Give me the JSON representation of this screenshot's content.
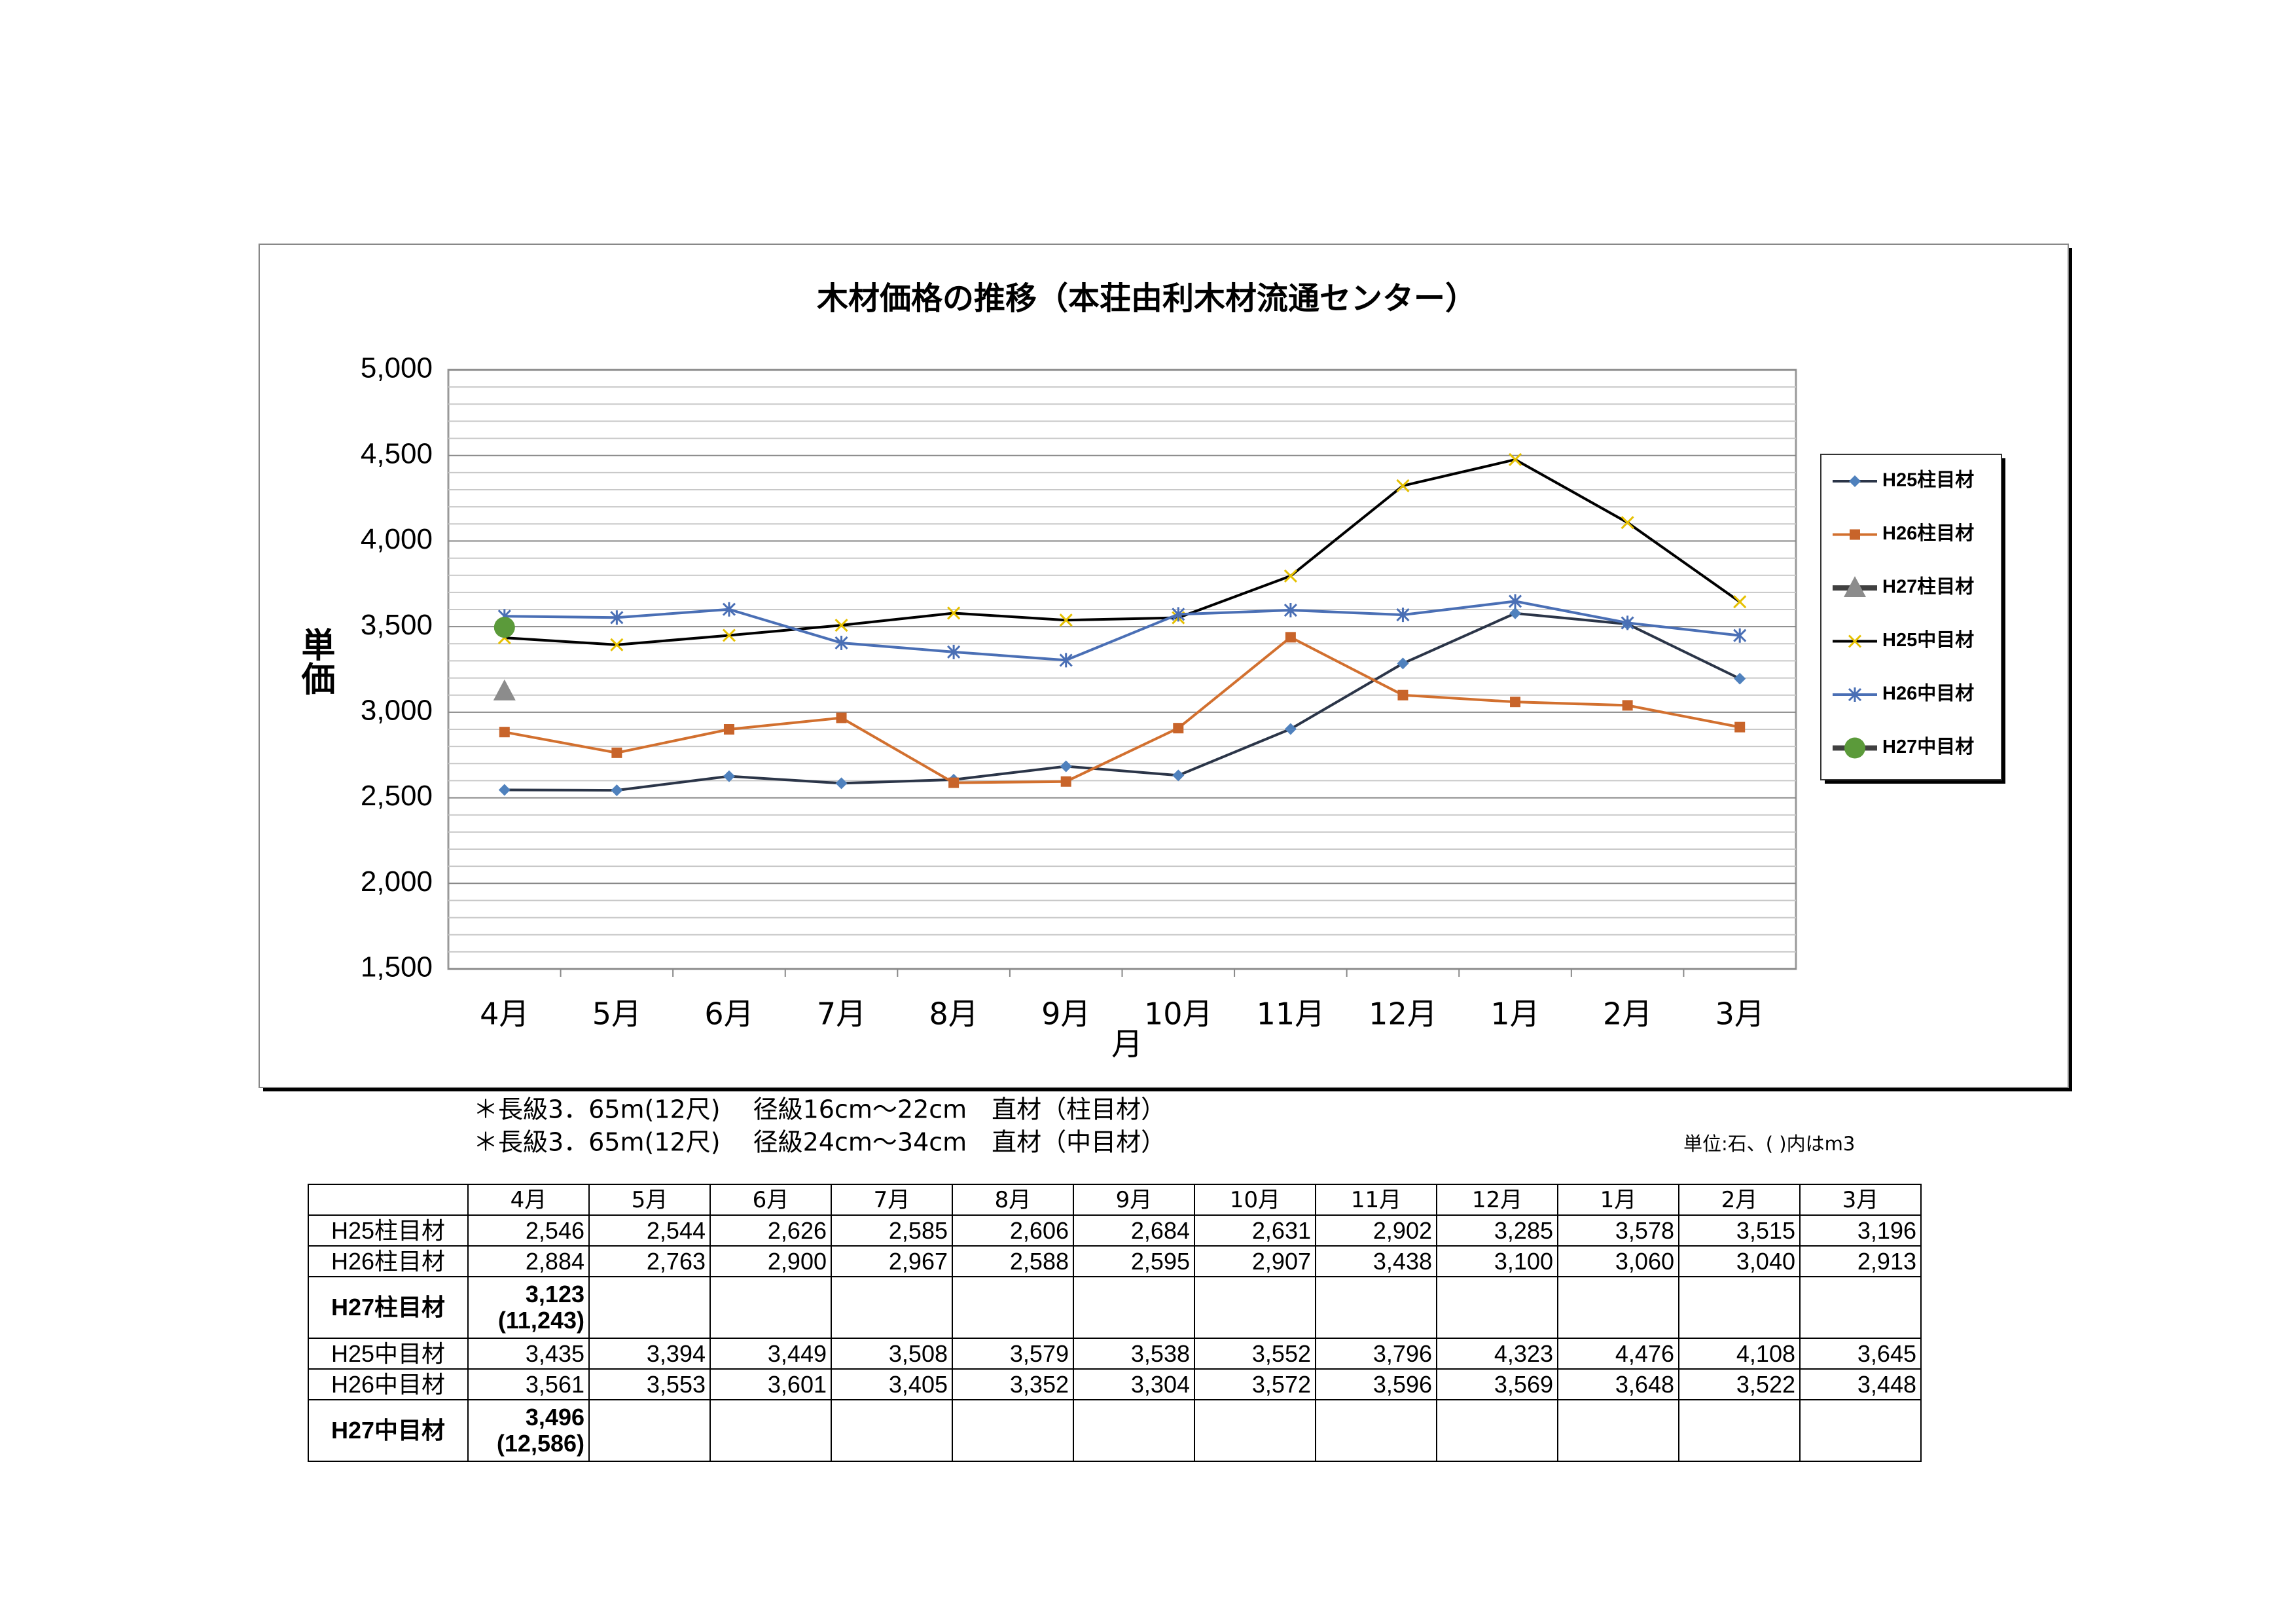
{
  "chart_data": {
    "type": "line",
    "title": "木材価格の推移（本荘由利木材流通センター）",
    "y_label": "単価",
    "x_label": "月",
    "categories": [
      "4月",
      "5月",
      "6月",
      "7月",
      "8月",
      "9月",
      "10月",
      "11月",
      "12月",
      "1月",
      "2月",
      "3月"
    ],
    "ylim": [
      1500,
      5000
    ],
    "yticks": [
      {
        "value": 1500,
        "label": "1,500"
      },
      {
        "value": 2000,
        "label": "2,000"
      },
      {
        "value": 2500,
        "label": "2,500"
      },
      {
        "value": 3000,
        "label": "3,000"
      },
      {
        "value": 3500,
        "label": "3,500"
      },
      {
        "value": 4000,
        "label": "4,000"
      },
      {
        "value": 4500,
        "label": "4,500"
      },
      {
        "value": 5000,
        "label": "5,000"
      }
    ],
    "grid": true,
    "legend": "right",
    "series": [
      {
        "name": "H25柱目材",
        "color": "#2b3548",
        "marker_color": "#4f81bd",
        "marker": "diamond",
        "values": [
          2546,
          2544,
          2626,
          2585,
          2606,
          2684,
          2631,
          2902,
          3285,
          3578,
          3515,
          3196
        ]
      },
      {
        "name": "H26柱目材",
        "color": "#d2702f",
        "marker_color": "#c8642a",
        "marker": "square",
        "values": [
          2884,
          2763,
          2900,
          2967,
          2588,
          2595,
          2907,
          3438,
          3100,
          3060,
          3040,
          2913
        ]
      },
      {
        "name": "H27柱目材",
        "color": "#404040",
        "marker_color": "#8c8c8c",
        "marker": "triangle",
        "values": [
          3123,
          null,
          null,
          null,
          null,
          null,
          null,
          null,
          null,
          null,
          null,
          null
        ]
      },
      {
        "name": "H25中目材",
        "color": "#000000",
        "marker_color": "#e6c000",
        "marker": "x",
        "values": [
          3435,
          3394,
          3449,
          3508,
          3579,
          3538,
          3552,
          3796,
          4323,
          4476,
          4108,
          3645
        ]
      },
      {
        "name": "H26中目材",
        "color": "#4a6fb5",
        "marker_color": "#4a6fb5",
        "marker": "asterisk",
        "values": [
          3561,
          3553,
          3601,
          3405,
          3352,
          3304,
          3572,
          3596,
          3569,
          3648,
          3522,
          3448
        ]
      },
      {
        "name": "H27中目材",
        "color": "#404040",
        "marker_color": "#5b9a3a",
        "marker": "circle",
        "values": [
          3496,
          null,
          null,
          null,
          null,
          null,
          null,
          null,
          null,
          null,
          null,
          null
        ]
      }
    ]
  },
  "notes": [
    "＊長級3．65m(12尺)　 径級16cm～22cm　直材（柱目材）",
    "＊長級3．65m(12尺)　 径級24cm～34cm　直材（中目材）"
  ],
  "unit": "単位:石、( )内はm3",
  "table": {
    "header": [
      "",
      "4月",
      "5月",
      "6月",
      "7月",
      "8月",
      "9月",
      "10月",
      "11月",
      "12月",
      "1月",
      "2月",
      "3月"
    ],
    "rows": [
      [
        "H25柱目材",
        "2,546",
        "2,544",
        "2,626",
        "2,585",
        "2,606",
        "2,684",
        "2,631",
        "2,902",
        "3,285",
        "3,578",
        "3,515",
        "3,196"
      ],
      [
        "H26柱目材",
        "2,884",
        "2,763",
        "2,900",
        "2,967",
        "2,588",
        "2,595",
        "2,907",
        "3,438",
        "3,100",
        "3,060",
        "3,040",
        "2,913"
      ],
      [
        "H27柱目材",
        [
          "3,123",
          "(11,243)"
        ],
        "",
        "",
        "",
        "",
        "",
        "",
        "",
        "",
        "",
        "",
        ""
      ],
      [
        "H25中目材",
        "3,435",
        "3,394",
        "3,449",
        "3,508",
        "3,579",
        "3,538",
        "3,552",
        "3,796",
        "4,323",
        "4,476",
        "4,108",
        "3,645"
      ],
      [
        "H26中目材",
        "3,561",
        "3,553",
        "3,601",
        "3,405",
        "3,352",
        "3,304",
        "3,572",
        "3,596",
        "3,569",
        "3,648",
        "3,522",
        "3,448"
      ],
      [
        "H27中目材",
        [
          "3,496",
          "(12,586)"
        ],
        "",
        "",
        "",
        "",
        "",
        "",
        "",
        "",
        "",
        "",
        ""
      ]
    ]
  }
}
